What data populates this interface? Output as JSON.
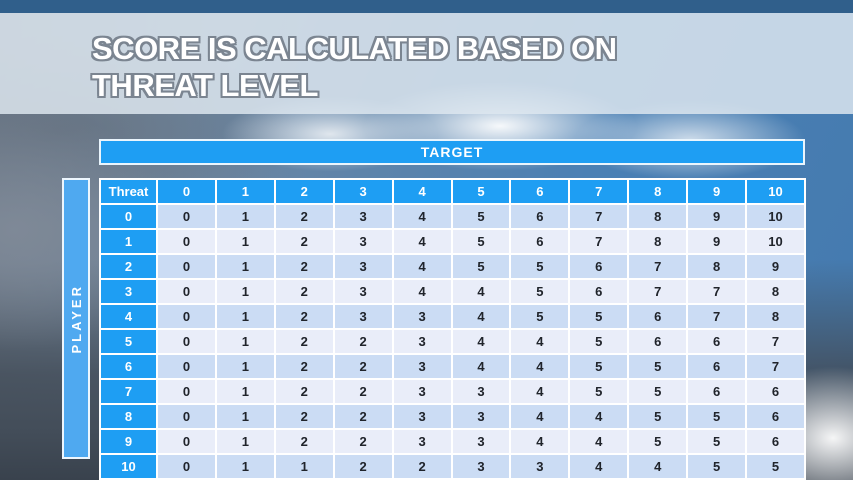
{
  "slide": {
    "title_lines": [
      "SCORE IS CALCULATED BASED ON",
      "THREAT LEVEL"
    ]
  },
  "matrix": {
    "target_label": "TARGET",
    "player_label": "PLAYER",
    "corner_label": "Threat",
    "column_headers": [
      "0",
      "1",
      "2",
      "3",
      "4",
      "5",
      "6",
      "7",
      "8",
      "9",
      "10"
    ],
    "row_headers": [
      "0",
      "1",
      "2",
      "3",
      "4",
      "5",
      "6",
      "7",
      "8",
      "9",
      "10"
    ],
    "rows": [
      [
        0,
        1,
        2,
        3,
        4,
        5,
        6,
        7,
        8,
        9,
        10
      ],
      [
        0,
        1,
        2,
        3,
        4,
        5,
        6,
        7,
        8,
        9,
        10
      ],
      [
        0,
        1,
        2,
        3,
        4,
        5,
        5,
        6,
        7,
        8,
        9
      ],
      [
        0,
        1,
        2,
        3,
        4,
        4,
        5,
        6,
        7,
        7,
        8
      ],
      [
        0,
        1,
        2,
        3,
        3,
        4,
        5,
        5,
        6,
        7,
        8
      ],
      [
        0,
        1,
        2,
        2,
        3,
        4,
        4,
        5,
        6,
        6,
        7
      ],
      [
        0,
        1,
        2,
        2,
        3,
        4,
        4,
        5,
        5,
        6,
        7
      ],
      [
        0,
        1,
        2,
        2,
        3,
        3,
        4,
        5,
        5,
        6,
        6
      ],
      [
        0,
        1,
        2,
        2,
        3,
        3,
        4,
        4,
        5,
        5,
        6
      ],
      [
        0,
        1,
        2,
        2,
        3,
        3,
        4,
        4,
        5,
        5,
        6
      ],
      [
        0,
        1,
        1,
        2,
        2,
        3,
        3,
        4,
        4,
        5,
        5
      ]
    ]
  },
  "colors": {
    "top_bar": "#305f8b",
    "header_blue": "#1e9ef3",
    "player_bar_blue": "#4fa9f0",
    "row_even": "#cbdcf4",
    "row_odd": "#e9edf9",
    "cell_text": "#20242b"
  }
}
